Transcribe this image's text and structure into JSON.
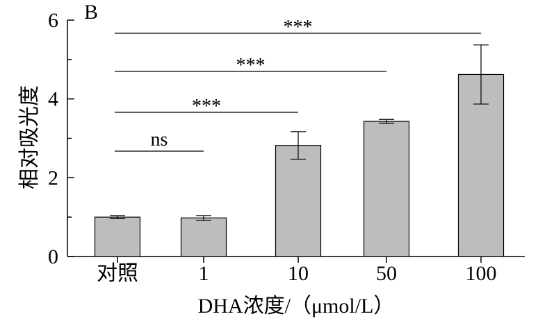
{
  "chart_data": {
    "type": "bar",
    "panel_label": "B",
    "categories": [
      "对照",
      "1",
      "10",
      "50",
      "100"
    ],
    "values": [
      1.0,
      0.98,
      2.82,
      3.43,
      4.62
    ],
    "errors": [
      0.04,
      0.06,
      0.35,
      0.05,
      0.75
    ],
    "xlabel": "DHA浓度/（μmol/L）",
    "ylabel": "相对吸光度",
    "ylim": [
      0,
      6
    ],
    "yticks": [
      0,
      2,
      4,
      6
    ],
    "grid": false,
    "bar_color": "#bdbdbd",
    "significance": [
      {
        "from": 0,
        "to": 1,
        "label": "ns"
      },
      {
        "from": 0,
        "to": 2,
        "label": "***"
      },
      {
        "from": 0,
        "to": 3,
        "label": "***"
      },
      {
        "from": 0,
        "to": 4,
        "label": "***"
      }
    ]
  }
}
